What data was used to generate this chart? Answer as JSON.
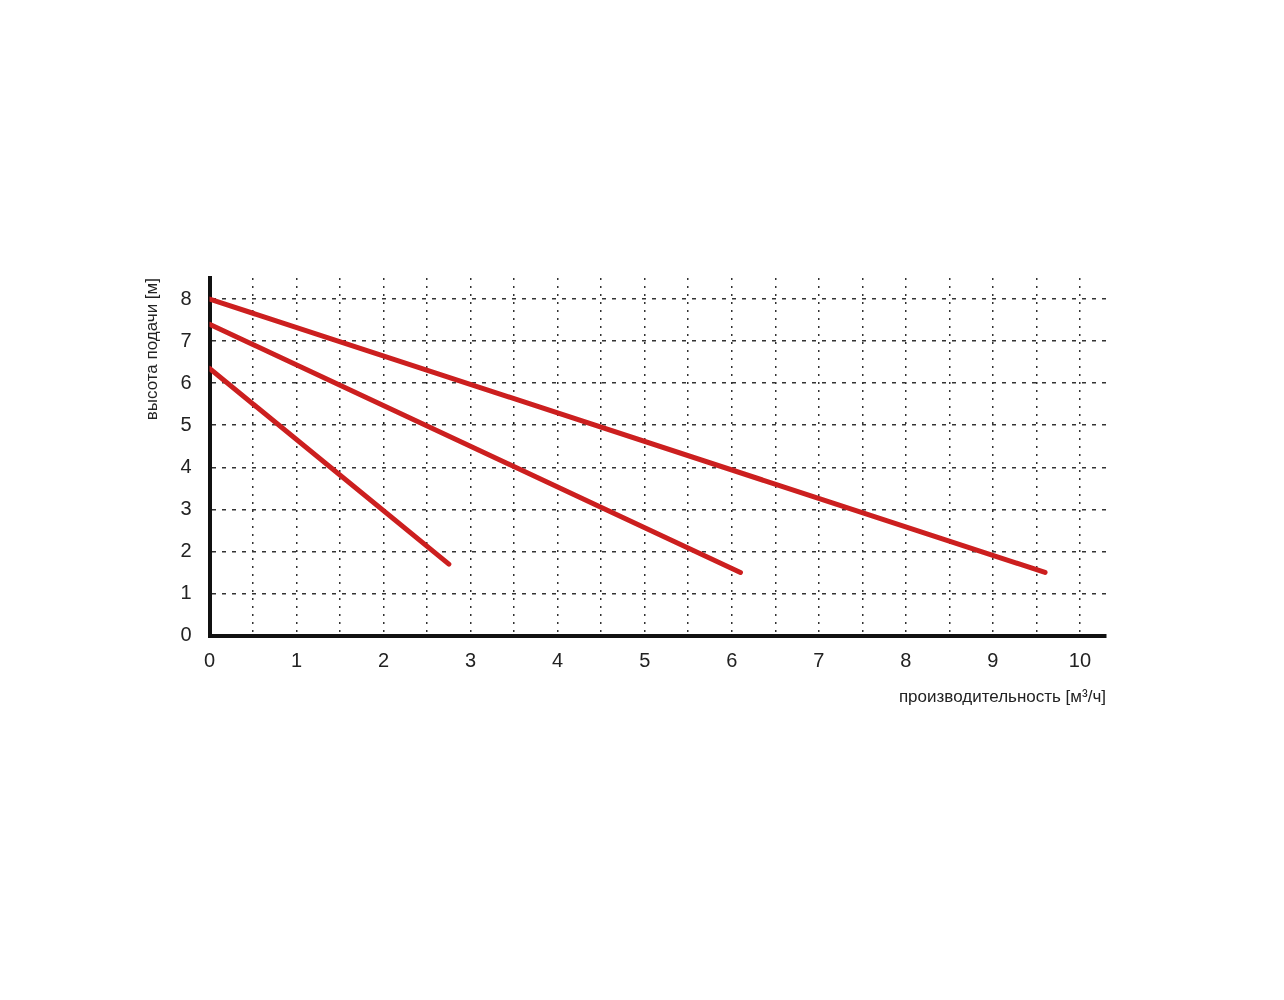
{
  "chart_data": {
    "type": "line",
    "xlabel": "производительность [м³/ч]",
    "ylabel": "высота подачи [м]",
    "series": [
      {
        "color": "#cc1f1f",
        "x": [
          0,
          9.6
        ],
        "values": [
          8,
          1.5
        ]
      },
      {
        "color": "#cc1f1f",
        "x": [
          0,
          6.1
        ],
        "values": [
          7.4,
          1.5
        ]
      },
      {
        "color": "#cc1f1f",
        "x": [
          0,
          2.75
        ],
        "values": [
          6.35,
          1.7
        ]
      }
    ],
    "xlim": [
      0,
      10.3
    ],
    "ylim": [
      0,
      8.5
    ],
    "xticks": [
      0,
      {
        "value": 0.5,
        "label": null
      },
      1,
      {
        "value": 1.5,
        "label": null
      },
      2,
      {
        "value": 2.5,
        "label": null
      },
      3,
      {
        "value": 3.5,
        "label": null
      },
      4,
      {
        "value": 4.5,
        "label": null
      },
      5,
      {
        "value": 5.5,
        "label": null
      },
      6,
      {
        "value": 6.5,
        "label": null
      },
      7,
      {
        "value": 7.5,
        "label": null
      },
      8,
      {
        "value": 8.5,
        "label": null
      },
      9,
      {
        "value": 9.5,
        "label": null
      },
      10
    ],
    "yticks": [
      0,
      1,
      2,
      3,
      4,
      5,
      6,
      7,
      8
    ],
    "grid": true,
    "legend": false,
    "marker": "none",
    "line_style": "solid"
  }
}
